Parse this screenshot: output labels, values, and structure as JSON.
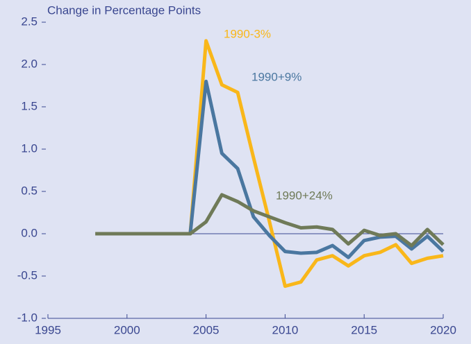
{
  "chart_data": {
    "type": "line",
    "y_axis_label": "Change in Percentage Points",
    "x": [
      1998,
      1999,
      2000,
      2001,
      2002,
      2003,
      2004,
      2005,
      2006,
      2007,
      2008,
      2009,
      2010,
      2011,
      2012,
      2013,
      2014,
      2015,
      2016,
      2017,
      2018,
      2019,
      2020
    ],
    "series": [
      {
        "name": "1990-3%",
        "color": "#f9b71a",
        "values": [
          0,
          0,
          0,
          0,
          0,
          0,
          0,
          2.28,
          1.76,
          1.67,
          0.9,
          0.15,
          -0.62,
          -0.57,
          -0.31,
          -0.26,
          -0.38,
          -0.26,
          -0.22,
          -0.13,
          -0.35,
          -0.29,
          -0.26
        ]
      },
      {
        "name": "1990+9%",
        "color": "#4a77a0",
        "values": [
          0,
          0,
          0,
          0,
          0,
          0,
          0,
          1.8,
          0.95,
          0.77,
          0.2,
          -0.02,
          -0.21,
          -0.23,
          -0.22,
          -0.14,
          -0.28,
          -0.08,
          -0.04,
          -0.03,
          -0.18,
          -0.03,
          -0.21
        ]
      },
      {
        "name": "1990+24%",
        "color": "#6f7a58",
        "values": [
          0,
          0,
          0,
          0,
          0,
          0,
          0,
          0.14,
          0.46,
          0.38,
          0.27,
          0.2,
          0.13,
          0.07,
          0.08,
          0.05,
          -0.12,
          0.04,
          -0.02,
          0.0,
          -0.14,
          0.05,
          -0.13
        ]
      }
    ],
    "xlim": [
      1995,
      2020
    ],
    "xticks": [
      1995,
      2000,
      2005,
      2010,
      2015,
      2020
    ],
    "ylim": [
      -1.0,
      2.5
    ],
    "yticks": [
      {
        "value": -1.0,
        "label": "-1.0"
      },
      -0.5,
      {
        "value": 0,
        "label": "0.0"
      },
      0.5,
      {
        "value": 1.0,
        "label": "1.0"
      },
      1.5,
      {
        "value": 2.0,
        "label": "2.0"
      },
      2.5
    ]
  }
}
